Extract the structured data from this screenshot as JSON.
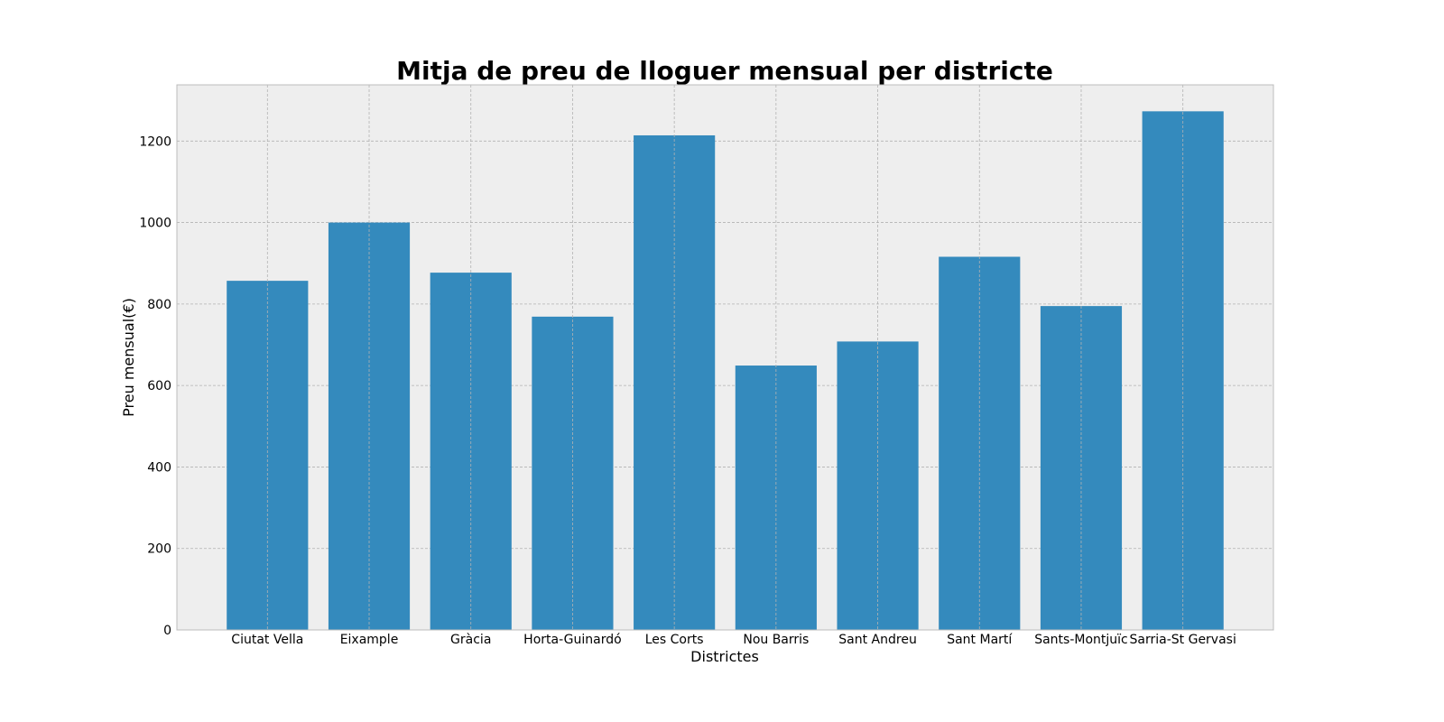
{
  "chart_data": {
    "type": "bar",
    "title": "Mitja de preu de lloguer mensual per districte",
    "xlabel": "Districtes",
    "ylabel": "Preu mensual(€)",
    "categories": [
      "Ciutat Vella",
      "Eixample",
      "Gràcia",
      "Horta-Guinardó",
      "Les Corts",
      "Nou Barris",
      "Sant Andreu",
      "Sant Martí",
      "Sants-Montjuïc",
      "Sarria-St Gervasi"
    ],
    "values": [
      857,
      1000,
      877,
      769,
      1214,
      649,
      708,
      916,
      795,
      1273
    ],
    "ylim": [
      0,
      1338
    ],
    "yticks": [
      0,
      200,
      400,
      600,
      800,
      1000,
      1200
    ],
    "grid": true,
    "colors": {
      "bar": "#348ABD",
      "plot_background": "#EEEEEE",
      "grid": "#B2B2B2",
      "frame": "#BCBCBC",
      "text": "#000000"
    }
  }
}
